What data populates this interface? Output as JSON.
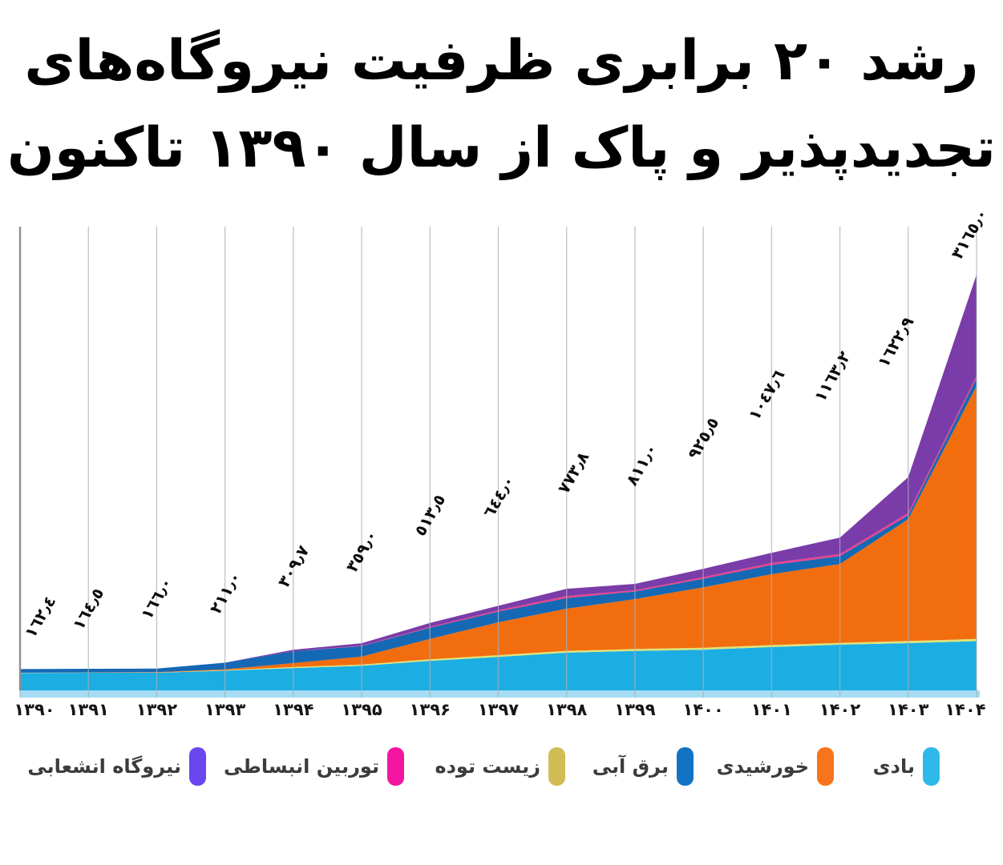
{
  "title": {
    "line1": "رشد ۲۰ برابری ظرفیت نیروگاه‌های",
    "line2": "تجدیدپذیر و پاک از سال ۱۳۹۰ تاکنون"
  },
  "chart_data": {
    "type": "area",
    "stacked": true,
    "title": "رشد ۲۰ برابری ظرفیت نیروگاه‌های تجدیدپذیر و پاک از سال ۱۳۹۰ تاکنون",
    "x_labels": [
      "۱۳۹۰",
      "۱۳۹۱",
      "۱۳۹۲",
      "۱۳۹۳",
      "۱۳۹۴",
      "۱۳۹۵",
      "۱۳۹۶",
      "۱۳۹۷",
      "۱۳۹۸",
      "۱۳۹۹",
      "۱۴۰۰",
      "۱۴۰۱",
      "۱۴۰۲",
      "۱۴۰۳",
      "۱۴۰۴"
    ],
    "totals": [
      162.4,
      164.5,
      166.0,
      211.0,
      309.7,
      359.0,
      513.5,
      644.0,
      773.8,
      811.0,
      925.5,
      1047.6,
      1163.2,
      1622.9,
      3165.0
    ],
    "value_labels": [
      "١٦٢٫٤",
      "١٦٤٫٥",
      "١٦٦٫٠",
      "٢١١٫٠",
      "٣٠٩٫٧",
      "٣٥٩٫٠",
      "٥١٣٫٥",
      "٦٤٤٫٠",
      "٧٧٣٫٨",
      "٨١١٫٠",
      "٩٢٥٫٥",
      "١٠٤٧٫٦",
      "١١٦٣٫٢",
      "١٦٢٢٫٩",
      "٣١٦٥٫٠"
    ],
    "ylim": [
      0,
      3400
    ],
    "grid": "vertical",
    "legend_position": "bottom",
    "series": [
      {
        "name": "بادی",
        "color": "#1cade3",
        "values": [
          133,
          134,
          134,
          150,
          170,
          187,
          225,
          255,
          287,
          300,
          310,
          330,
          348,
          360,
          375
        ]
      },
      {
        "name": "زیست توده",
        "color": "#dde377",
        "values": [
          1,
          1.5,
          2,
          4,
          8,
          10,
          12,
          13,
          14,
          15,
          15,
          15,
          14,
          16,
          17
        ]
      },
      {
        "name": "خورشیدی",
        "color": "#f26d0e",
        "values": [
          1,
          1,
          2.5,
          7,
          30,
          61,
          155,
          250,
          321,
          380,
          460,
          540,
          600,
          927,
          1925
        ]
      },
      {
        "name": "برق آبی",
        "color": "#1568b4",
        "values": [
          27.4,
          28,
          27.5,
          50,
          90,
          79,
          85,
          82,
          81,
          58,
          65,
          70,
          60,
          30,
          60
        ]
      },
      {
        "name": "توربین انبساطی",
        "color": "#e8418c",
        "values": [
          0,
          0,
          0,
          0,
          0,
          2,
          6,
          10,
          16,
          10,
          12,
          15,
          16,
          18,
          18
        ]
      },
      {
        "name": "نیروگاه انشعابی",
        "color": "#7a3ca8",
        "values": [
          0,
          0,
          0,
          0,
          11.7,
          20,
          30.5,
          34,
          54.8,
          48,
          63.5,
          77.6,
          125.2,
          271.9,
          770
        ]
      }
    ],
    "legend": [
      {
        "label": "بادی",
        "color": "#2fb9ea"
      },
      {
        "label": "خورشیدی",
        "color": "#f8731d"
      },
      {
        "label": "برق آبی",
        "color": "#1272c4"
      },
      {
        "label": "زیست توده",
        "color": "#d2bd55"
      },
      {
        "label": "توربین انبساطی",
        "color": "#f315a0"
      },
      {
        "label": "نیروگاه انشعابی",
        "color": "#6b46f0"
      }
    ]
  }
}
